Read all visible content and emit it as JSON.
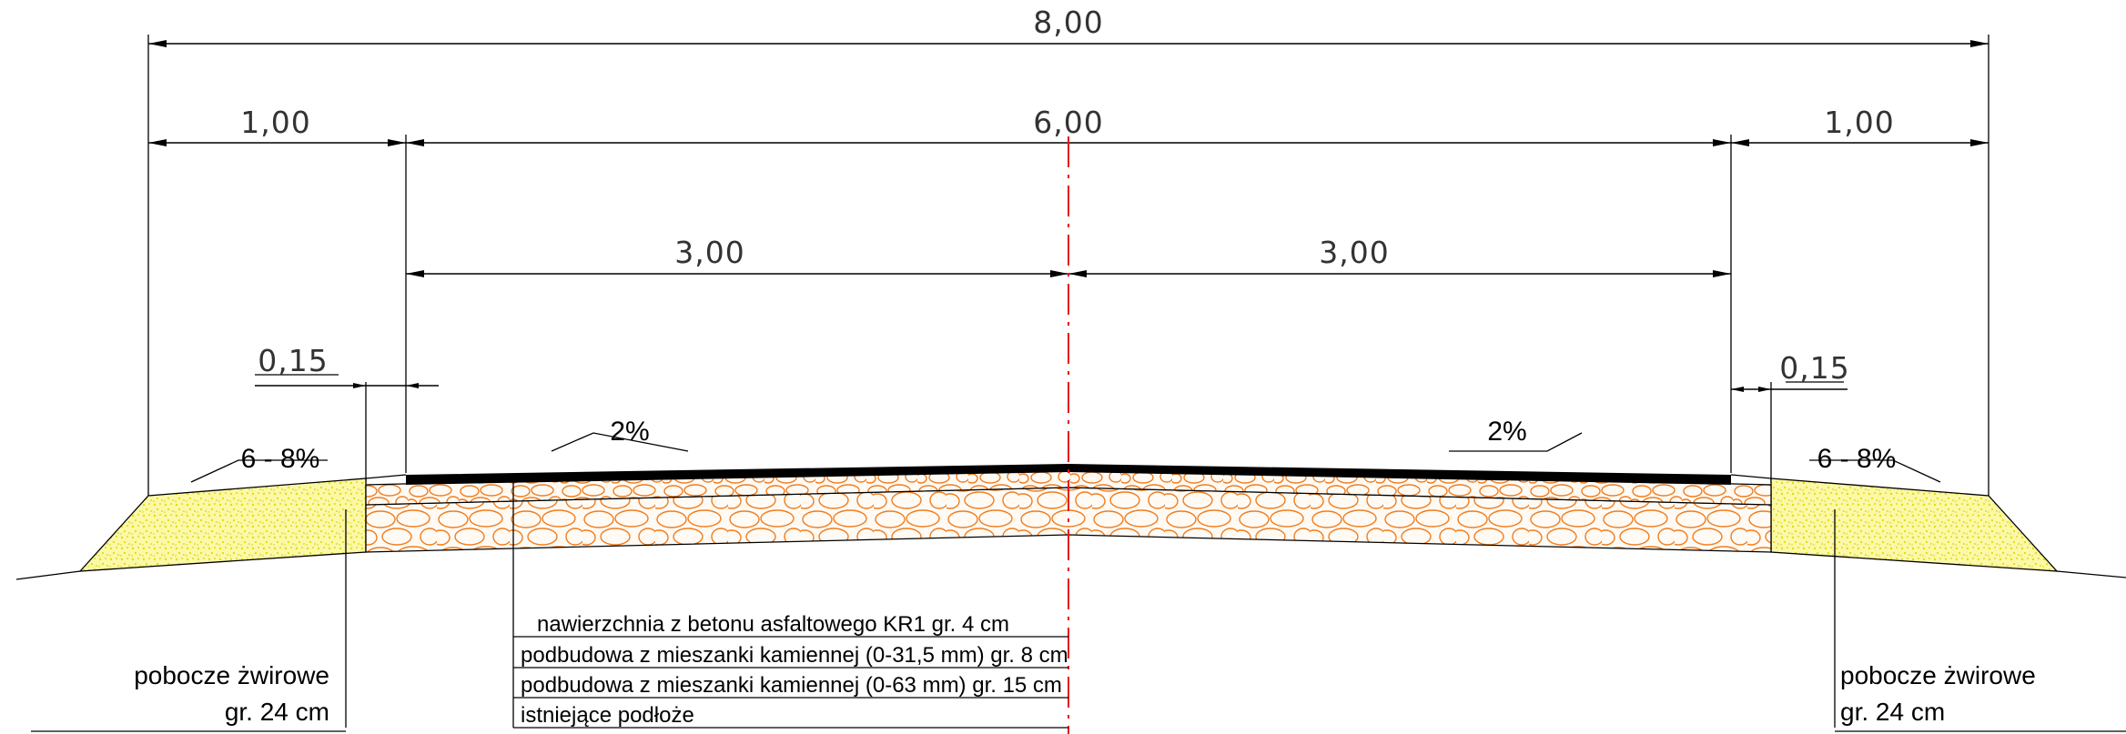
{
  "dimensions": {
    "total_width": "8,00",
    "shoulder_left": "1,00",
    "roadway": "6,00",
    "shoulder_right": "1,00",
    "lane_left": "3,00",
    "lane_right": "3,00",
    "curb_left": "0,15",
    "curb_right": "0,15"
  },
  "slopes": {
    "shoulder_left": "6 - 8%",
    "lane_left": "2%",
    "lane_right": "2%",
    "shoulder_right": "6 - 8%"
  },
  "layers": [
    "nawierzchnia z betonu asfaltowego KR1 gr. 4 cm",
    "podbudowa z mieszanki kamiennej (0-31,5 mm) gr. 8 cm",
    "podbudowa z mieszanki kamiennej (0-63 mm) gr. 15 cm",
    "istniejące podłoże"
  ],
  "shoulder_labels": {
    "left_line1": "pobocze żwirowe",
    "left_line2": "gr. 24 cm",
    "right_line1": "pobocze żwirowe",
    "right_line2": "gr. 24 cm"
  },
  "colors": {
    "asphalt": "#000000",
    "aggregate": "#f07d1e",
    "gravel": "#f3ef2a",
    "centerline": "#e8121e"
  }
}
